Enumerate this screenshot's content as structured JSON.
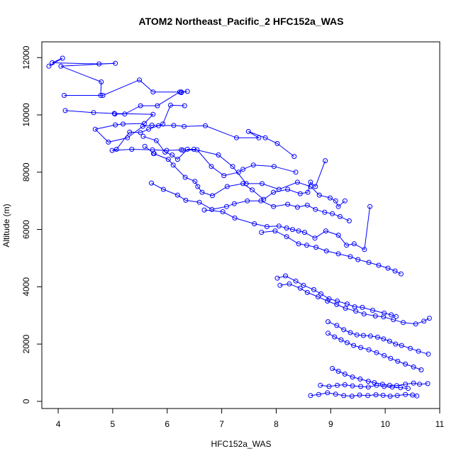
{
  "chart_data": {
    "type": "line",
    "title": "ATOM2 Northeast_Pacific_2 HFC152a_WAS",
    "xlabel": "HFC152a_WAS",
    "ylabel": "Altitude (m)",
    "xlim": [
      3.7,
      11.0
    ],
    "ylim": [
      -250,
      12550
    ],
    "xticks": [
      4,
      5,
      6,
      7,
      8,
      9,
      10,
      11
    ],
    "yticks": [
      0,
      2000,
      4000,
      6000,
      8000,
      10000,
      12000
    ],
    "grid": false,
    "legend": "none",
    "marker": "open-circle",
    "colors": {
      "series": "#0000ff",
      "axis": "#000000",
      "background": "#ffffff"
    },
    "series": [
      {
        "x": [
          3.83,
          4.08,
          3.89,
          4.75,
          5.05,
          4.05,
          4.79,
          4.78,
          4.11,
          4.82,
          5.49,
          5.74,
          6.26,
          6.37,
          6.26,
          6.23,
          5.82,
          5.51,
          5.22,
          5.04
        ],
        "y": [
          11700,
          11980,
          11820,
          11780,
          11800,
          11700,
          11150,
          10680,
          10680,
          10680,
          11220,
          10800,
          10800,
          10820,
          10780,
          10800,
          10320,
          10320,
          10030,
          10030
        ]
      },
      {
        "x": [
          4.13,
          4.65,
          5.03,
          5.74,
          5.58,
          5.19,
          5.05,
          4.68,
          4.92,
          5.27,
          5.55,
          5.72,
          5.84,
          6.12,
          6.31,
          6.7,
          7.27,
          7.68,
          7.49,
          7.8,
          8.02,
          8.33
        ],
        "y": [
          10150,
          10080,
          10050,
          10020,
          9700,
          9680,
          9650,
          9500,
          9050,
          9200,
          9600,
          9640,
          9620,
          9630,
          9600,
          9620,
          9200,
          9200,
          9420,
          9200,
          9000,
          8550
        ]
      },
      {
        "x": [
          6.32,
          6.06,
          5.92,
          5.66,
          5.51,
          5.31,
          5.07,
          4.99,
          5.35,
          5.73,
          5.99,
          6.26,
          6.29,
          6.55,
          6.81,
          7.04,
          7.31,
          7.39,
          7.58,
          7.96,
          8.36
        ],
        "y": [
          10320,
          10340,
          9680,
          9500,
          9380,
          9400,
          8800,
          8760,
          8800,
          8780,
          8760,
          8780,
          8770,
          8780,
          8200,
          7880,
          8000,
          8100,
          8250,
          8200,
          8000
        ]
      },
      {
        "x": [
          5.56,
          5.8,
          5.96,
          6.09,
          6.19,
          6.37,
          6.49,
          6.94,
          7.2,
          7.45,
          7.74,
          8.05,
          8.39,
          8.63,
          8.79,
          8.99,
          9.09,
          9.14,
          9.26
        ],
        "y": [
          9250,
          9100,
          8700,
          8600,
          8450,
          8800,
          8800,
          8600,
          8200,
          7600,
          7600,
          7400,
          7650,
          7500,
          7200,
          7100,
          7000,
          6800,
          7000
        ]
      },
      {
        "x": [
          5.59,
          5.76,
          5.75,
          6.02,
          6.11,
          6.33,
          6.51,
          6.56,
          6.64,
          6.83,
          7.1,
          7.39,
          7.56,
          7.77,
          7.95,
          8.21,
          8.44,
          8.58,
          8.63,
          8.72,
          8.9
        ],
        "y": [
          8900,
          8650,
          8650,
          8450,
          8250,
          7820,
          7680,
          7500,
          7300,
          7180,
          7500,
          7600,
          7380,
          7050,
          7300,
          7400,
          7250,
          7300,
          7650,
          7500,
          8400
        ]
      },
      {
        "x": [
          5.71,
          5.93,
          6.19,
          6.34,
          6.59,
          6.82,
          7.09,
          7.23,
          7.47,
          7.72,
          7.95,
          8.21,
          8.39,
          8.57,
          8.72,
          8.89,
          9.03,
          9.17,
          9.34
        ],
        "y": [
          7620,
          7400,
          7200,
          7020,
          6950,
          6700,
          6800,
          6900,
          7000,
          7000,
          6800,
          6880,
          6780,
          6850,
          6700,
          6600,
          6550,
          6450,
          6300
        ]
      },
      {
        "x": [
          6.68,
          7.02,
          7.24,
          7.6,
          7.83,
          8.05,
          8.19,
          8.3,
          8.41,
          8.52,
          8.71,
          8.91,
          9.14,
          9.29,
          9.43,
          9.62,
          9.72
        ],
        "y": [
          6680,
          6620,
          6400,
          6200,
          6100,
          6120,
          6050,
          6000,
          5950,
          5900,
          5700,
          5950,
          5800,
          5450,
          5500,
          5300,
          6800
        ]
      },
      {
        "x": [
          7.73,
          7.98,
          8.19,
          8.41,
          8.56,
          8.73,
          8.92,
          9.14,
          9.36,
          9.5,
          9.7,
          9.88,
          10.05,
          10.18,
          10.29
        ],
        "y": [
          5900,
          5950,
          5750,
          5500,
          5450,
          5380,
          5250,
          5150,
          5050,
          4950,
          4850,
          4750,
          4650,
          4550,
          4450
        ]
      },
      {
        "x": [
          8.02,
          8.17,
          8.36,
          8.5,
          8.69,
          8.82,
          8.97,
          9.12,
          9.3,
          9.44,
          9.58,
          9.77,
          9.98,
          10.11,
          10.2
        ],
        "y": [
          4300,
          4380,
          4200,
          4050,
          3900,
          3750,
          3580,
          3500,
          3400,
          3300,
          3280,
          3180,
          3080,
          3020,
          2960
        ]
      },
      {
        "x": [
          8.07,
          8.24,
          8.44,
          8.57,
          8.77,
          8.94,
          9.11,
          9.27,
          9.46,
          9.61,
          9.82,
          9.97,
          10.15,
          10.33,
          10.56,
          10.71,
          10.81
        ],
        "y": [
          4050,
          4100,
          3950,
          3800,
          3650,
          3500,
          3380,
          3250,
          3150,
          3050,
          2980,
          2950,
          2850,
          2750,
          2700,
          2800,
          2900
        ]
      },
      {
        "x": [
          8.95,
          9.11,
          9.24,
          9.36,
          9.48,
          9.6,
          9.73,
          9.86,
          9.97,
          10.08,
          10.19,
          10.3,
          10.46,
          10.61,
          10.79
        ],
        "y": [
          2780,
          2650,
          2500,
          2400,
          2320,
          2300,
          2280,
          2240,
          2180,
          2100,
          2000,
          1950,
          1850,
          1750,
          1650
        ]
      },
      {
        "x": [
          8.95,
          9.07,
          9.19,
          9.3,
          9.42,
          9.55,
          9.7,
          9.84,
          9.98,
          10.1,
          10.23,
          10.37,
          10.52,
          10.66
        ],
        "y": [
          2380,
          2250,
          2150,
          2050,
          1950,
          1880,
          1800,
          1700,
          1600,
          1500,
          1400,
          1300,
          1200,
          1100
        ]
      },
      {
        "x": [
          9.03,
          9.14,
          9.26,
          9.4,
          9.54,
          9.69,
          9.8,
          9.95,
          10.08,
          10.21,
          10.37,
          10.52,
          10.63,
          10.78
        ],
        "y": [
          1150,
          1050,
          950,
          850,
          780,
          700,
          650,
          600,
          560,
          550,
          600,
          640,
          600,
          620
        ]
      },
      {
        "x": [
          8.63,
          8.78,
          8.94,
          9.09,
          9.24,
          9.39,
          9.53,
          9.68,
          9.83,
          9.96,
          10.09,
          10.22,
          10.37,
          10.5,
          10.58
        ],
        "y": [
          200,
          240,
          300,
          250,
          200,
          180,
          220,
          200,
          230,
          210,
          180,
          200,
          240,
          220,
          190
        ]
      },
      {
        "x": [
          8.81,
          8.97,
          9.12,
          9.26,
          9.4,
          9.55,
          9.69,
          9.84,
          9.98,
          10.13,
          10.28,
          10.42
        ],
        "y": [
          560,
          520,
          560,
          580,
          540,
          520,
          500,
          560,
          520,
          500,
          480,
          450
        ]
      }
    ]
  }
}
